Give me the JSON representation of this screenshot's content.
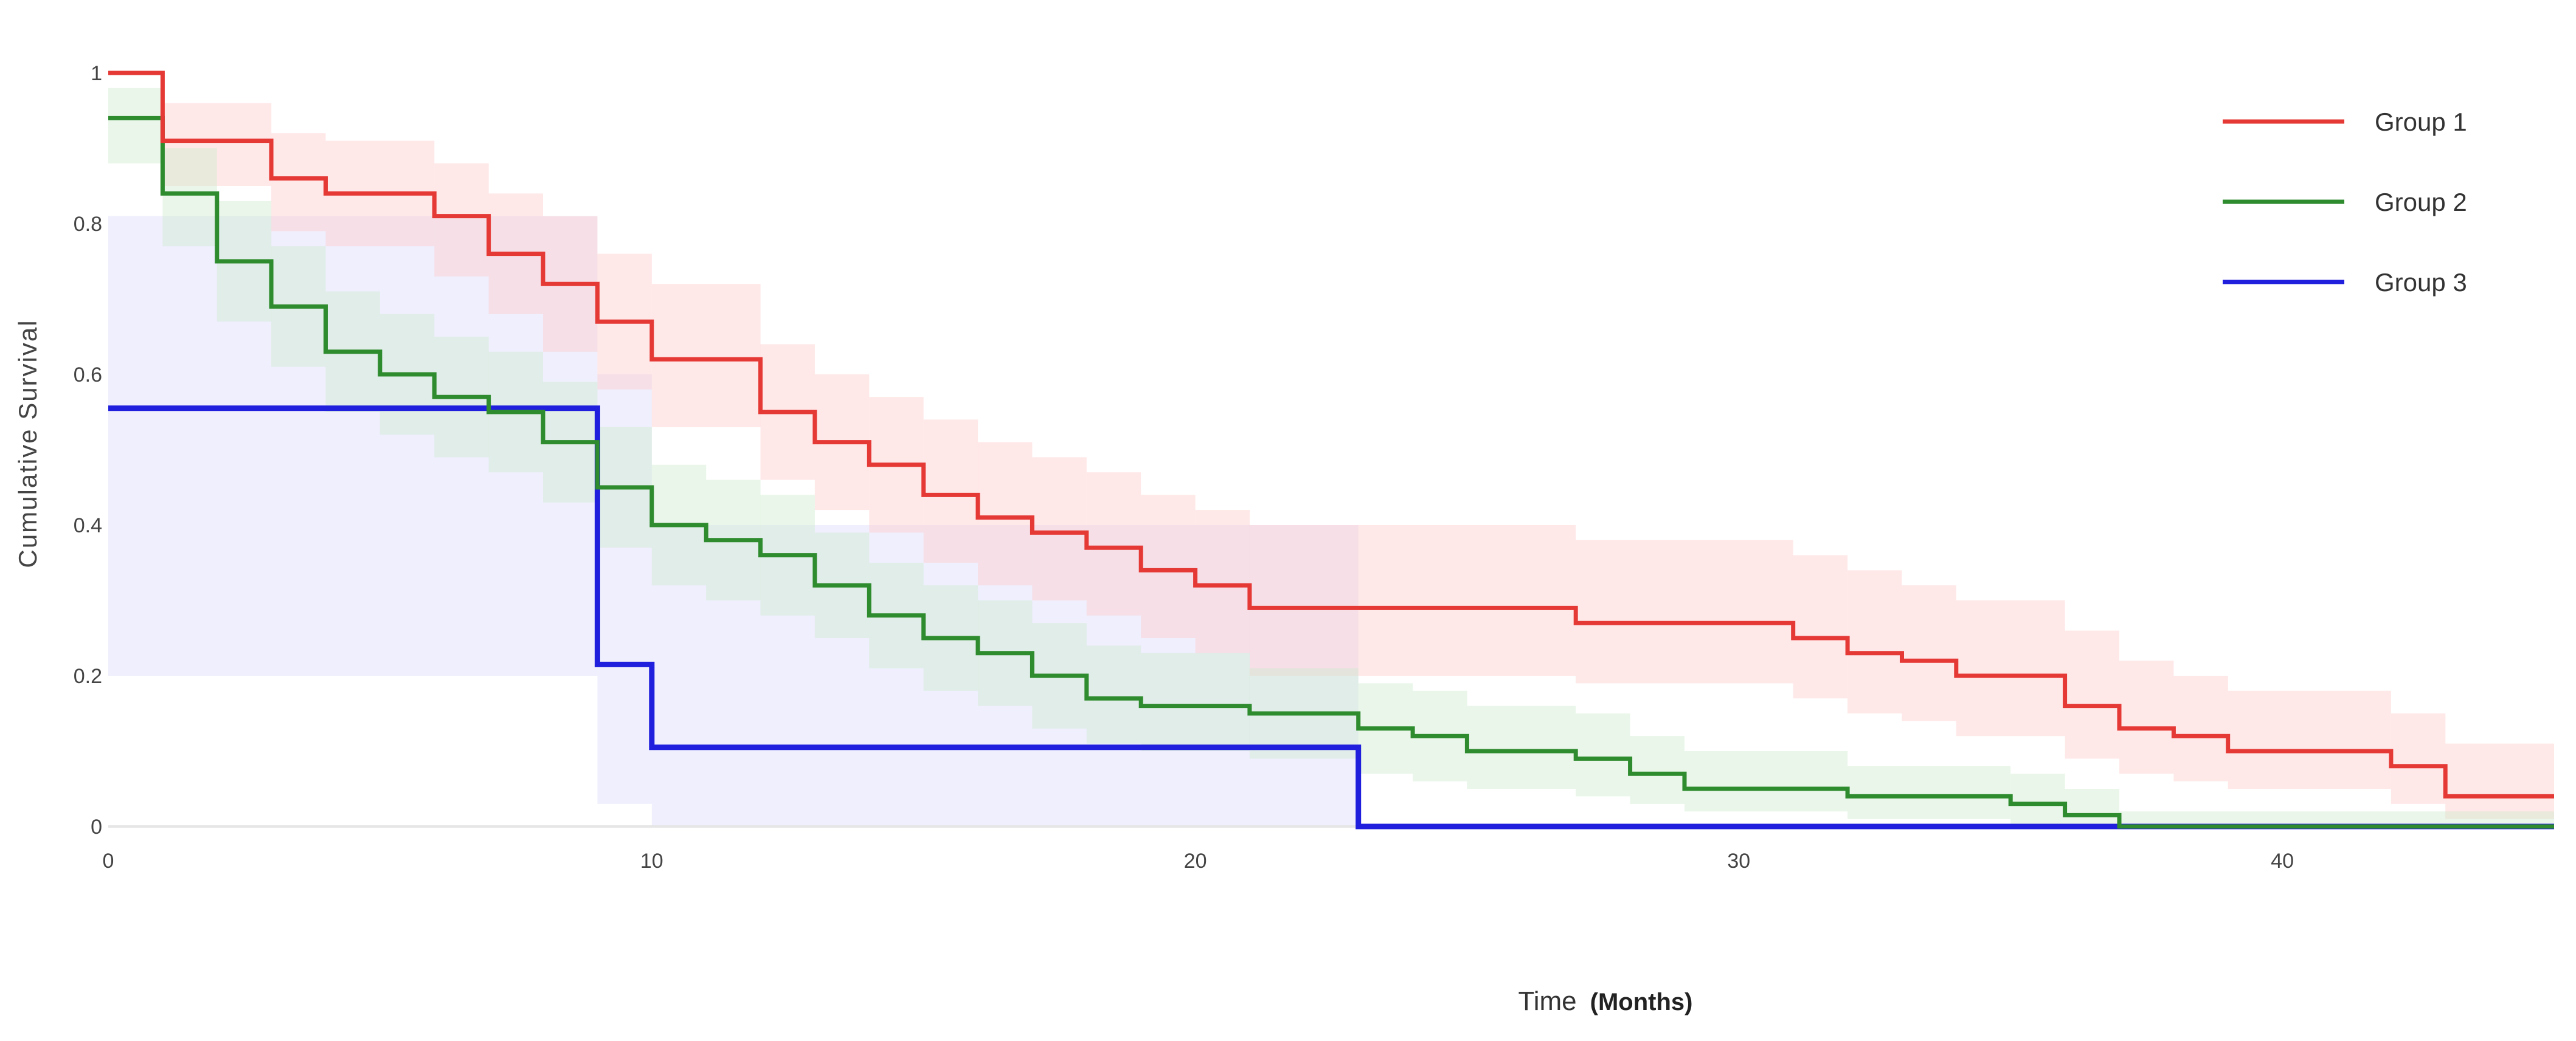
{
  "chart_data": {
    "type": "line",
    "step": true,
    "title": "",
    "xlabel": "Time",
    "xlabel_unit": "(Months)",
    "ylabel": "Cumulative Survival",
    "xlim": [
      0,
      45
    ],
    "ylim": [
      0,
      1
    ],
    "x_ticks": [
      "0",
      "10",
      "20",
      "30",
      "40"
    ],
    "y_ticks": [
      "0",
      "0.2",
      "0.4",
      "0.6",
      "0.8",
      "1"
    ],
    "grid": false,
    "legend_position": "top-right",
    "series": [
      {
        "name": "Group 1",
        "color": "#e53935",
        "band_color": "#ffcccc",
        "x": [
          0,
          1,
          3,
          4,
          6,
          7,
          8,
          9,
          10,
          12,
          13,
          14,
          15,
          16,
          17,
          18,
          19,
          20,
          21,
          27,
          31,
          32,
          33,
          34,
          36,
          37,
          38,
          39,
          42,
          43
        ],
        "y": [
          1.0,
          0.91,
          0.86,
          0.84,
          0.81,
          0.76,
          0.72,
          0.67,
          0.62,
          0.55,
          0.51,
          0.48,
          0.44,
          0.41,
          0.39,
          0.37,
          0.34,
          0.32,
          0.29,
          0.27,
          0.25,
          0.23,
          0.22,
          0.2,
          0.16,
          0.13,
          0.12,
          0.1,
          0.08,
          0.04
        ],
        "lower": [
          1.0,
          0.85,
          0.79,
          0.77,
          0.73,
          0.68,
          0.63,
          0.58,
          0.53,
          0.46,
          0.42,
          0.39,
          0.35,
          0.32,
          0.3,
          0.28,
          0.25,
          0.23,
          0.2,
          0.19,
          0.17,
          0.15,
          0.14,
          0.12,
          0.09,
          0.07,
          0.06,
          0.05,
          0.03,
          0.01
        ],
        "upper": [
          1.0,
          0.96,
          0.92,
          0.91,
          0.88,
          0.84,
          0.81,
          0.76,
          0.72,
          0.64,
          0.6,
          0.57,
          0.54,
          0.51,
          0.49,
          0.47,
          0.44,
          0.42,
          0.4,
          0.38,
          0.36,
          0.34,
          0.32,
          0.3,
          0.26,
          0.22,
          0.2,
          0.18,
          0.15,
          0.11
        ],
        "x_end": 45
      },
      {
        "name": "Group 2",
        "color": "#2e8b2e",
        "band_color": "#cfeacf",
        "x": [
          0,
          1,
          2,
          3,
          4,
          5,
          6,
          7,
          8,
          9,
          10,
          11,
          12,
          13,
          14,
          15,
          16,
          17,
          18,
          19,
          21,
          23,
          24,
          25,
          27,
          28,
          29,
          32,
          35,
          36,
          37
        ],
        "y": [
          0.94,
          0.84,
          0.75,
          0.69,
          0.63,
          0.6,
          0.57,
          0.55,
          0.51,
          0.45,
          0.4,
          0.38,
          0.36,
          0.32,
          0.28,
          0.25,
          0.23,
          0.2,
          0.17,
          0.16,
          0.15,
          0.13,
          0.12,
          0.1,
          0.09,
          0.07,
          0.05,
          0.04,
          0.03,
          0.015,
          0.0
        ],
        "lower": [
          0.88,
          0.77,
          0.67,
          0.61,
          0.55,
          0.52,
          0.49,
          0.47,
          0.43,
          0.37,
          0.32,
          0.3,
          0.28,
          0.25,
          0.21,
          0.18,
          0.16,
          0.13,
          0.11,
          0.1,
          0.09,
          0.07,
          0.06,
          0.05,
          0.04,
          0.03,
          0.02,
          0.01,
          0.0,
          0.0,
          0.0
        ],
        "upper": [
          0.98,
          0.9,
          0.83,
          0.77,
          0.71,
          0.68,
          0.65,
          0.63,
          0.59,
          0.53,
          0.48,
          0.46,
          0.44,
          0.39,
          0.35,
          0.32,
          0.3,
          0.27,
          0.24,
          0.23,
          0.21,
          0.19,
          0.18,
          0.16,
          0.15,
          0.12,
          0.1,
          0.08,
          0.07,
          0.05,
          0.02
        ],
        "x_end": 45
      },
      {
        "name": "Group 3",
        "color": "#1f1fdd",
        "band_color": "#dcdcfb",
        "x": [
          0,
          9,
          10,
          23
        ],
        "y": [
          0.555,
          0.215,
          0.105,
          0.0
        ],
        "lower": [
          0.2,
          0.03,
          0.0,
          0.0
        ],
        "upper": [
          0.81,
          0.6,
          0.4,
          0.0
        ],
        "x_end": 45
      }
    ]
  }
}
